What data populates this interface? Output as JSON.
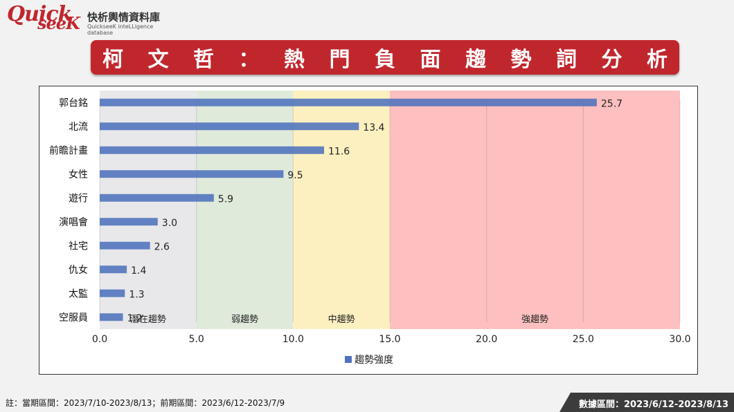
{
  "logo": {
    "wordmark_top": "Quick",
    "wordmark_bottom": "seeK",
    "name_cn": "快析輿情資料庫",
    "name_en": "QuickseeK inteLLigence database"
  },
  "title": "柯文哲：熱門負面趨勢詞分析",
  "footnote": "註：當期區間：2023/7/10-2023/8/13；前期區間：2023/6/12-2023/7/9",
  "date_range_label": "數據區間：2023/6/12-2023/8/13",
  "colors": {
    "brand_red": "#c0272d",
    "bar": "#4f72bd",
    "zone_latent": "#e8e8ea",
    "zone_weak": "#dfeadb",
    "zone_medium": "#fdf0c0",
    "zone_strong": "#fdbfbf"
  },
  "chart_data": {
    "type": "bar",
    "orientation": "horizontal",
    "categories": [
      "郭台銘",
      "北流",
      "前瞻計畫",
      "女性",
      "遊行",
      "演唱會",
      "社宅",
      "仇女",
      "太監",
      "空服員"
    ],
    "series": [
      {
        "name": "趨勢強度",
        "values": [
          25.7,
          13.4,
          11.6,
          9.5,
          5.9,
          3.0,
          2.6,
          1.4,
          1.3,
          1.2
        ]
      }
    ],
    "value_labels": [
      "25.7",
      "13.4",
      "11.6",
      "9.5",
      "5.9",
      "3.0",
      "2.6",
      "1.4",
      "1.3",
      "1.2"
    ],
    "xlim": [
      0,
      30
    ],
    "xticks": [
      "0.0",
      "5.0",
      "10.0",
      "15.0",
      "20.0",
      "25.0",
      "30.0"
    ],
    "zones": [
      {
        "label": "潛在趨勢",
        "from": 0,
        "to": 5
      },
      {
        "label": "弱趨勢",
        "from": 5,
        "to": 10
      },
      {
        "label": "中趨勢",
        "from": 10,
        "to": 15
      },
      {
        "label": "強趨勢",
        "from": 15,
        "to": 30
      }
    ],
    "legend": {
      "label": "趨勢強度",
      "position": "bottom"
    },
    "grid": true
  }
}
